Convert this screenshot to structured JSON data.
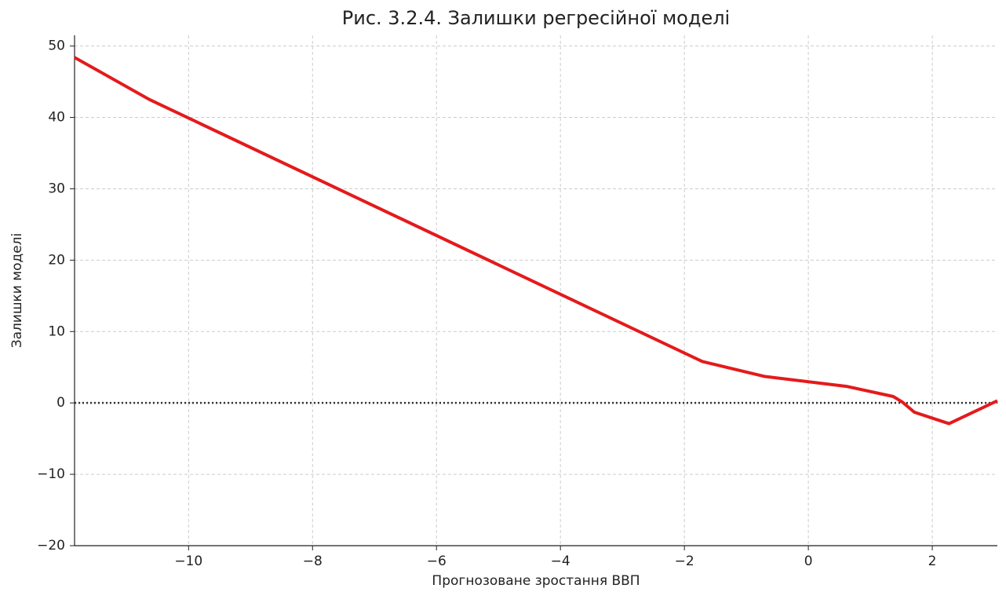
{
  "chart_data": {
    "type": "line",
    "title": "Рис. 3.2.4. Залишки регресійної моделі",
    "xlabel": "Прогнозоване зростання ВВП",
    "ylabel": "Залишки моделі",
    "x": [
      -11.84,
      -10.63,
      -1.71,
      -0.7,
      0.63,
      1.37,
      1.52,
      1.71,
      2.27,
      3.05
    ],
    "values": [
      48.4,
      42.5,
      5.8,
      3.7,
      2.3,
      0.9,
      0.1,
      -1.3,
      -2.9,
      0.3
    ],
    "color": "#e41a1c",
    "hline": 0,
    "xlim": [
      -11.84,
      3.05
    ],
    "ylim": [
      -20,
      51.5
    ],
    "xticks": [
      {
        "value": -10,
        "label": "−10"
      },
      {
        "value": -8,
        "label": "−8"
      },
      {
        "value": -6,
        "label": "−6"
      },
      {
        "value": -4,
        "label": "−4"
      },
      {
        "value": -2,
        "label": "−2"
      },
      0,
      2
    ],
    "yticks": [
      {
        "value": -20,
        "label": "−20"
      },
      {
        "value": -10,
        "label": "−10"
      },
      0,
      10,
      20,
      30,
      40,
      50
    ],
    "grid": true
  }
}
